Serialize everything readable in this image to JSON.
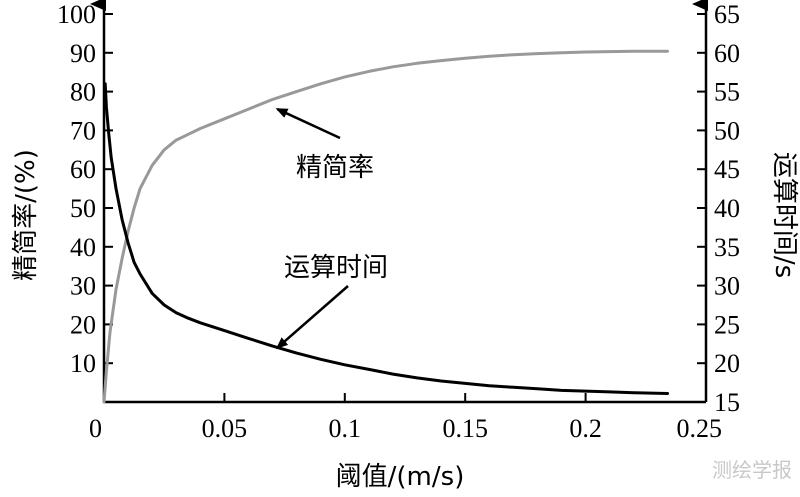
{
  "chart_data": {
    "type": "line",
    "xlabel": "阈值/(m/s)",
    "ylabel_left": "精简率/(%)",
    "ylabel_right": "运算时间/s",
    "xlim": [
      0,
      0.25
    ],
    "ylim_left": [
      0,
      100
    ],
    "ylim_right": [
      15,
      65
    ],
    "x_ticks": [
      0,
      0.05,
      0.1,
      0.15,
      0.2,
      0.25
    ],
    "x_tick_labels": [
      "0",
      "0.05",
      "0.1",
      "0.15",
      "0.2",
      "0.25"
    ],
    "y_left_ticks": [
      10,
      20,
      30,
      40,
      50,
      60,
      70,
      80,
      90,
      100
    ],
    "y_left_tick_labels": [
      "10",
      "20",
      "30",
      "40",
      "50",
      "60",
      "70",
      "80",
      "90",
      "100"
    ],
    "y_right_ticks": [
      15,
      20,
      25,
      30,
      35,
      40,
      45,
      50,
      55,
      60,
      65
    ],
    "y_right_tick_labels": [
      "15",
      "20",
      "25",
      "30",
      "35",
      "40",
      "45",
      "50",
      "55",
      "60",
      "65"
    ],
    "grid": false,
    "series": [
      {
        "name": "精简率",
        "axis": "left",
        "color": "#999999",
        "x": [
          0,
          0.001,
          0.0025,
          0.005,
          0.0075,
          0.01,
          0.0125,
          0.015,
          0.02,
          0.025,
          0.03,
          0.035,
          0.04,
          0.05,
          0.06,
          0.07,
          0.08,
          0.09,
          0.1,
          0.11,
          0.12,
          0.13,
          0.14,
          0.15,
          0.16,
          0.17,
          0.18,
          0.19,
          0.2,
          0.21,
          0.22,
          0.234
        ],
        "y": [
          0,
          8,
          18,
          29,
          37,
          44,
          50,
          55,
          61,
          65,
          67.5,
          69,
          70.5,
          73,
          75.5,
          78,
          80,
          82,
          83.8,
          85.2,
          86.4,
          87.3,
          88,
          88.6,
          89.1,
          89.5,
          89.8,
          90,
          90.2,
          90.3,
          90.4,
          90.4
        ]
      },
      {
        "name": "运算时间",
        "axis": "right",
        "color": "#000000",
        "x": [
          0.0005,
          0.001,
          0.002,
          0.003,
          0.005,
          0.0075,
          0.01,
          0.0125,
          0.015,
          0.02,
          0.025,
          0.03,
          0.035,
          0.04,
          0.05,
          0.06,
          0.07,
          0.08,
          0.09,
          0.1,
          0.11,
          0.12,
          0.13,
          0.14,
          0.15,
          0.16,
          0.17,
          0.18,
          0.19,
          0.2,
          0.21,
          0.22,
          0.234
        ],
        "y": [
          56,
          53,
          49.5,
          46.5,
          42.5,
          38.5,
          35.5,
          33,
          31.5,
          29,
          27.5,
          26.5,
          25.8,
          25.2,
          24.2,
          23.2,
          22.2,
          21.3,
          20.5,
          19.8,
          19.2,
          18.6,
          18.1,
          17.7,
          17.4,
          17.1,
          16.9,
          16.7,
          16.5,
          16.4,
          16.3,
          16.2,
          16.1
        ]
      }
    ],
    "annotations": [
      {
        "text": "精简率",
        "target_series": "精简率",
        "target_x": 0.072,
        "target_y_left": 75.5
      },
      {
        "text": "运算时间",
        "target_series": "运算时间",
        "target_x": 0.072,
        "target_y_right": 22
      }
    ]
  },
  "watermark": "测绘学报"
}
